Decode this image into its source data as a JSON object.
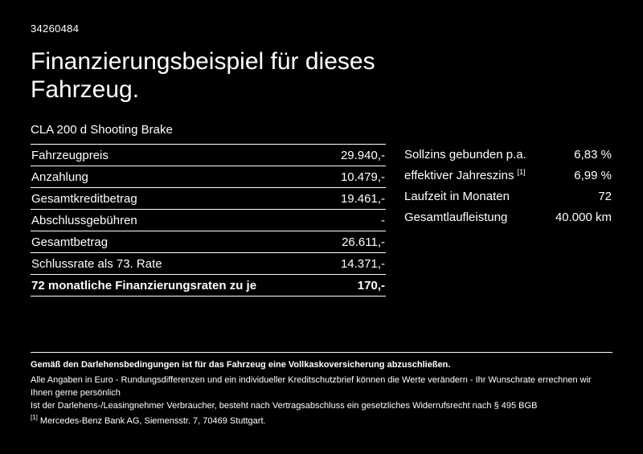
{
  "page": {
    "id_number": "34260484",
    "title": "Finanzierungsbeispiel für dieses Fahrzeug.",
    "vehicle": "CLA 200 d Shooting Brake"
  },
  "left_table": {
    "rows": [
      {
        "label": "Fahrzeugpreis",
        "value": "29.940,-"
      },
      {
        "label": "Anzahlung",
        "value": "10.479,-"
      },
      {
        "label": "Gesamtkreditbetrag",
        "value": "19.461,-"
      },
      {
        "label": "Abschlussgebühren",
        "value": "-"
      },
      {
        "label": "Gesamtbetrag",
        "value": "26.611,-"
      },
      {
        "label": "Schlussrate als 73. Rate",
        "value": "14.371,-"
      },
      {
        "label": "72 monatliche Finanzierungsraten zu je",
        "value": "170,-"
      }
    ]
  },
  "right_table": {
    "rows": [
      {
        "label": "Sollzins gebunden p.a.",
        "sup": "",
        "value": "6,83 %"
      },
      {
        "label": "effektiver Jahreszins ",
        "sup": "[1]",
        "value": "6,99 %"
      },
      {
        "label": "Laufzeit in Monaten",
        "sup": "",
        "value": "72"
      },
      {
        "label": "Gesamtlaufleistung",
        "sup": "",
        "value": "40.000 km"
      }
    ]
  },
  "footer": {
    "line1": "Gemäß den Darlehensbedingungen ist für das Fahrzeug eine Vollkaskoversicherung abzuschließen.",
    "line2": "Alle Angaben in Euro - Rundungsdifferenzen und ein individueller Kreditschutzbrief können die Werte verändern - Ihr Wunschrate errechnen wir Ihnen gerne persönlich",
    "line3": "Ist der Darlehens-/Leasingnehmer Verbraucher, besteht nach Vertragsabschluss ein gesetzliches Widerrufsrecht nach § 495 BGB",
    "footnote_marker": "[1]",
    "footnote_text": "Mercedes-Benz Bank AG, Siemensstr. 7, 70469 Stuttgart."
  }
}
